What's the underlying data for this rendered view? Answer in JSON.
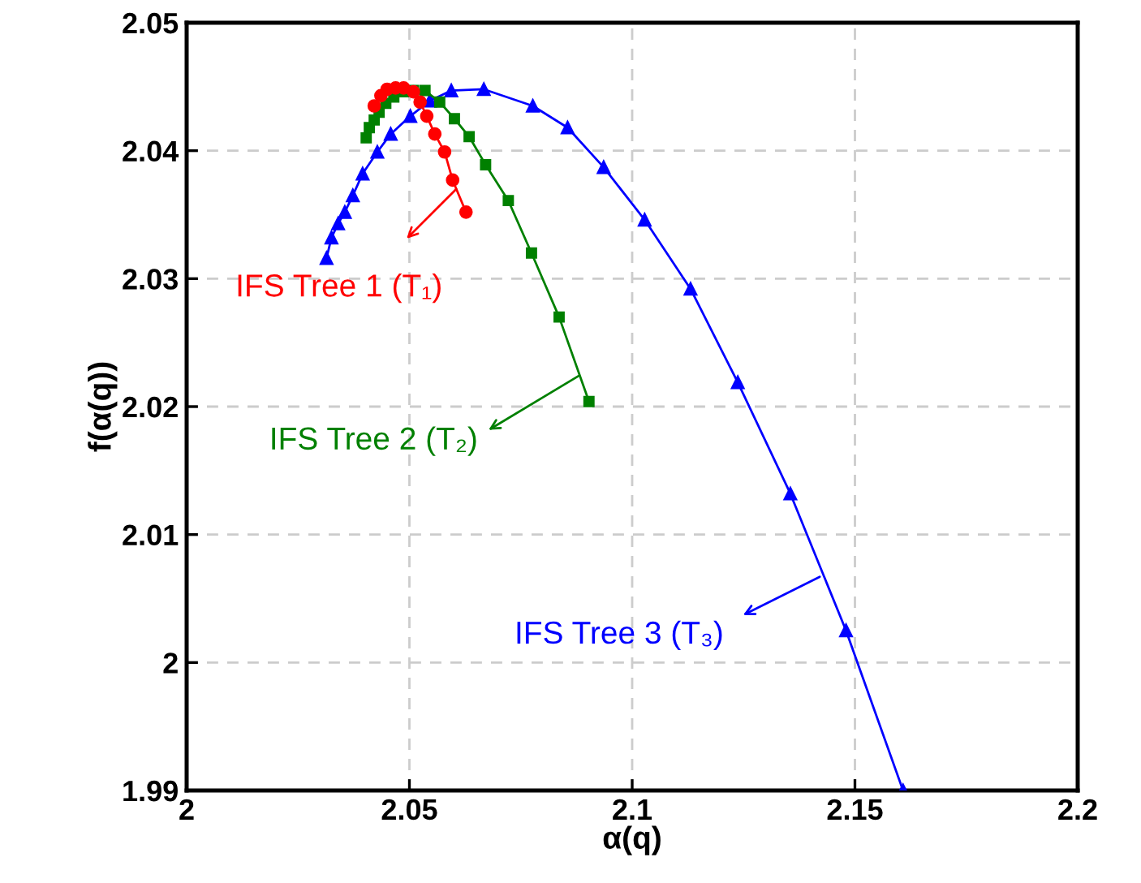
{
  "chart_data": {
    "type": "line",
    "xlabel": "α(q)",
    "ylabel": "f(α(q))",
    "xlim": [
      2,
      2.2
    ],
    "xticks": [
      2,
      2.05,
      2.1,
      2.15,
      2.2
    ],
    "ylim": [
      1.99,
      2.05
    ],
    "yticks": [
      1.99,
      2,
      2.01,
      2.02,
      2.03,
      2.04,
      2.05
    ],
    "grid": true,
    "line_style": "solid",
    "series": [
      {
        "color": "#ff0000",
        "marker": "circle",
        "x": [
          2.0421,
          2.0436,
          2.045,
          2.0469,
          2.0487,
          2.0509,
          2.0524,
          2.0539,
          2.0557,
          2.0579,
          2.0597,
          2.0627
        ],
        "values": [
          2.0435,
          2.0443,
          2.0448,
          2.0449,
          2.0449,
          2.0446,
          2.0438,
          2.0427,
          2.0413,
          2.0399,
          2.0377,
          2.0352
        ]
      },
      {
        "color": "#008000",
        "marker": "square",
        "x": [
          2.0403,
          2.041,
          2.0421,
          2.0432,
          2.0447,
          2.0465,
          2.0487,
          2.0509,
          2.0535,
          2.0568,
          2.0601,
          2.0634,
          2.0671,
          2.0722,
          2.0774,
          2.0836,
          2.0903
        ],
        "values": [
          2.041,
          2.0418,
          2.0424,
          2.043,
          2.0437,
          2.0442,
          2.0446,
          2.0447,
          2.0447,
          2.0438,
          2.0425,
          2.0411,
          2.0389,
          2.0361,
          2.032,
          2.027,
          2.0204
        ]
      },
      {
        "color": "#0000ff",
        "marker": "triangle",
        "x": [
          2.0314,
          2.0325,
          2.034,
          2.0355,
          2.0373,
          2.0395,
          2.0428,
          2.0458,
          2.0502,
          2.0546,
          2.0594,
          2.0667,
          2.0777,
          2.0855,
          2.0936,
          2.1028,
          2.1131,
          2.1237,
          2.1355,
          2.148,
          2.1608
        ],
        "values": [
          2.0316,
          2.0332,
          2.0343,
          2.0352,
          2.0365,
          2.0382,
          2.0399,
          2.0413,
          2.0427,
          2.0439,
          2.0447,
          2.0448,
          2.0435,
          2.0418,
          2.0387,
          2.0346,
          2.0292,
          2.0219,
          2.0132,
          2.0025,
          1.99
        ]
      }
    ],
    "annotations": [
      {
        "text": "IFS Tree 1 (T₁)",
        "x": 2.0605,
        "y": 2.037
      },
      {
        "text": "IFS Tree 2 (T₂)",
        "x": 2.088,
        "y": 2.0224
      },
      {
        "text": "IFS Tree 3 (T₃)",
        "x": 2.1421,
        "y": 2.0067
      }
    ]
  }
}
